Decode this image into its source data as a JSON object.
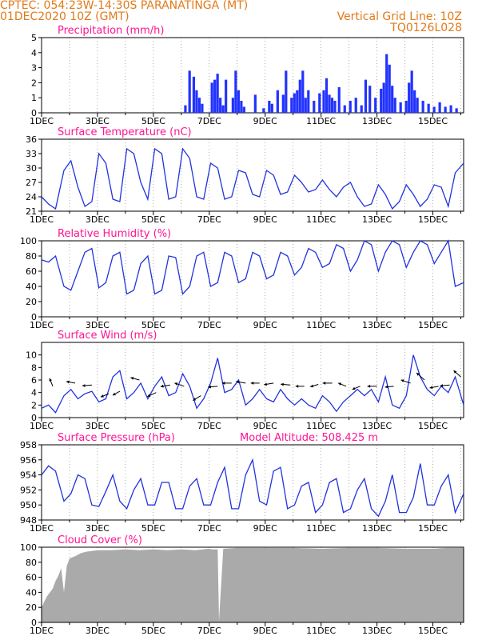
{
  "header": {
    "line1": "CPTEC:   054:23W-14:30S   PARANATINGA (MT)",
    "line2": "01DEC2020 10Z (GMT)",
    "right1": "Vertical Grid Line: 10Z",
    "right2": "TQ0126L028"
  },
  "colors": {
    "header": "#e07a1a",
    "title": "#ff1493",
    "line": "#2233dd",
    "bar": "#2233ff",
    "cloud": "#aaaaaa"
  },
  "x_labels": [
    "1DEC",
    "3DEC",
    "5DEC",
    "7DEC",
    "9DEC",
    "11DEC",
    "13DEC",
    "15DEC"
  ],
  "chart_data": [
    {
      "type": "bar",
      "title": "Precipitation (mm/h)",
      "ylim": [
        0,
        5
      ],
      "yticks": [
        0,
        1,
        2,
        3,
        4,
        5
      ],
      "xlim": [
        0,
        15.1
      ],
      "x": [
        5.1,
        5.25,
        5.4,
        5.5,
        5.6,
        5.7,
        6.05,
        6.15,
        6.25,
        6.35,
        6.45,
        6.55,
        6.8,
        6.9,
        7.0,
        7.1,
        7.2,
        7.6,
        7.9,
        8.1,
        8.2,
        8.4,
        8.6,
        8.7,
        8.9,
        9.0,
        9.1,
        9.2,
        9.3,
        9.4,
        9.5,
        9.7,
        9.9,
        10.05,
        10.15,
        10.25,
        10.35,
        10.45,
        10.6,
        10.8,
        11.0,
        11.2,
        11.4,
        11.55,
        11.7,
        11.9,
        12.1,
        12.2,
        12.3,
        12.4,
        12.5,
        12.6,
        12.8,
        13.0,
        13.1,
        13.2,
        13.3,
        13.4,
        13.6,
        13.8,
        14.0,
        14.2,
        14.4,
        14.6,
        14.8
      ],
      "values": [
        0.5,
        2.8,
        2.4,
        1.5,
        1.0,
        0.6,
        2.0,
        2.2,
        2.6,
        1.0,
        0.5,
        2.2,
        1.0,
        2.8,
        1.5,
        0.8,
        0.4,
        1.2,
        0.3,
        0.8,
        0.6,
        1.5,
        1.2,
        2.8,
        1.0,
        1.3,
        1.5,
        2.2,
        2.8,
        1.0,
        1.5,
        0.8,
        1.3,
        1.5,
        2.3,
        1.2,
        1.0,
        0.8,
        1.7,
        0.5,
        0.8,
        1.0,
        0.5,
        2.2,
        1.8,
        1.0,
        1.6,
        2.0,
        3.9,
        3.2,
        1.8,
        1.0,
        0.7,
        0.8,
        2.0,
        2.8,
        1.5,
        1.0,
        0.8,
        0.6,
        0.4,
        0.7,
        0.4,
        0.5,
        0.3
      ]
    },
    {
      "type": "line",
      "title": "Surface Temperature (nC)",
      "ylim": [
        21,
        36
      ],
      "yticks": [
        21,
        24,
        27,
        30,
        33,
        36
      ],
      "xlim": [
        0,
        15.1
      ],
      "x": [
        0,
        0.25,
        0.5,
        0.8,
        1.05,
        1.3,
        1.55,
        1.8,
        2.05,
        2.3,
        2.55,
        2.8,
        3.05,
        3.3,
        3.55,
        3.8,
        4.05,
        4.3,
        4.55,
        4.8,
        5.05,
        5.3,
        5.55,
        5.8,
        6.05,
        6.3,
        6.55,
        6.8,
        7.05,
        7.3,
        7.55,
        7.8,
        8.05,
        8.3,
        8.55,
        8.8,
        9.05,
        9.3,
        9.55,
        9.8,
        10.05,
        10.3,
        10.55,
        10.8,
        11.05,
        11.3,
        11.55,
        11.8,
        12.05,
        12.3,
        12.55,
        12.8,
        13.05,
        13.3,
        13.55,
        13.8,
        14.05,
        14.3,
        14.55,
        14.8,
        15.1
      ],
      "values": [
        24,
        22.5,
        21.5,
        29.5,
        31.5,
        26,
        22,
        23,
        33,
        31,
        23.5,
        23,
        34,
        33,
        27,
        23.5,
        34,
        33,
        23.5,
        24,
        34,
        32,
        24,
        23.5,
        31,
        30,
        23.5,
        24,
        29.5,
        29,
        24.5,
        24,
        29.5,
        28.5,
        24.5,
        25,
        28.5,
        27,
        25,
        25.5,
        27.5,
        25.5,
        24,
        26,
        27,
        24,
        22,
        22.5,
        26.5,
        24.5,
        21.5,
        23,
        26.5,
        24.5,
        22,
        23.5,
        26.5,
        26,
        22,
        29,
        31
      ]
    },
    {
      "type": "line",
      "title": "Relative Humidity (%)",
      "ylim": [
        0,
        100
      ],
      "yticks": [
        0,
        20,
        40,
        60,
        80,
        100
      ],
      "xlim": [
        0,
        15.1
      ],
      "x": [
        0,
        0.25,
        0.5,
        0.8,
        1.05,
        1.3,
        1.55,
        1.8,
        2.05,
        2.3,
        2.55,
        2.8,
        3.05,
        3.3,
        3.55,
        3.8,
        4.05,
        4.3,
        4.55,
        4.8,
        5.05,
        5.3,
        5.55,
        5.8,
        6.05,
        6.3,
        6.55,
        6.8,
        7.05,
        7.3,
        7.55,
        7.8,
        8.05,
        8.3,
        8.55,
        8.8,
        9.05,
        9.3,
        9.55,
        9.8,
        10.05,
        10.3,
        10.55,
        10.8,
        11.05,
        11.3,
        11.55,
        11.8,
        12.05,
        12.3,
        12.55,
        12.8,
        13.05,
        13.3,
        13.55,
        13.8,
        14.05,
        14.3,
        14.55,
        14.8,
        15.1
      ],
      "values": [
        75,
        72,
        80,
        40,
        35,
        60,
        85,
        90,
        38,
        45,
        80,
        85,
        30,
        35,
        70,
        80,
        30,
        35,
        80,
        78,
        30,
        40,
        80,
        85,
        40,
        45,
        85,
        80,
        45,
        50,
        85,
        80,
        50,
        55,
        85,
        80,
        55,
        65,
        90,
        85,
        65,
        70,
        95,
        90,
        60,
        75,
        100,
        95,
        60,
        85,
        100,
        95,
        65,
        85,
        100,
        95,
        70,
        85,
        100,
        40,
        45
      ]
    },
    {
      "type": "line",
      "title": "Surface Wind (m/s)",
      "ylim": [
        0,
        12
      ],
      "yticks": [
        0,
        2,
        4,
        6,
        8,
        10
      ],
      "xlim": [
        0,
        15.1
      ],
      "x": [
        0,
        0.25,
        0.5,
        0.8,
        1.05,
        1.3,
        1.55,
        1.8,
        2.05,
        2.3,
        2.55,
        2.8,
        3.05,
        3.3,
        3.55,
        3.8,
        4.05,
        4.3,
        4.55,
        4.8,
        5.05,
        5.3,
        5.55,
        5.8,
        6.05,
        6.3,
        6.55,
        6.8,
        7.05,
        7.3,
        7.55,
        7.8,
        8.05,
        8.3,
        8.55,
        8.8,
        9.05,
        9.3,
        9.55,
        9.8,
        10.05,
        10.3,
        10.55,
        10.8,
        11.05,
        11.3,
        11.55,
        11.8,
        12.05,
        12.3,
        12.55,
        12.8,
        13.05,
        13.3,
        13.55,
        13.8,
        14.05,
        14.3,
        14.55,
        14.8,
        15.1
      ],
      "values": [
        1.5,
        2.0,
        0.8,
        3.5,
        4.5,
        3.0,
        3.8,
        4.2,
        2.5,
        3.0,
        6.5,
        7.5,
        3.0,
        4.0,
        5.5,
        3.0,
        5.0,
        6.5,
        3.5,
        4.0,
        7.0,
        5.0,
        1.5,
        3.0,
        5.5,
        9.5,
        4.0,
        4.5,
        6.0,
        2.0,
        3.0,
        4.5,
        3.0,
        2.5,
        4.5,
        3.0,
        2.0,
        3.0,
        2.0,
        1.5,
        3.5,
        2.5,
        1.0,
        2.5,
        3.5,
        4.5,
        3.5,
        4.5,
        2.5,
        6.5,
        2.0,
        1.5,
        3.5,
        10.0,
        6.5,
        4.5,
        3.5,
        5.0,
        4.0,
        6.5,
        2.0
      ],
      "arrows": [
        {
          "x": 0.4,
          "y": 5.0,
          "dx": -4,
          "dy": -10
        },
        {
          "x": 1.2,
          "y": 5.5,
          "dx": -11,
          "dy": -2
        },
        {
          "x": 1.8,
          "y": 5.2,
          "dx": -12,
          "dy": 1
        },
        {
          "x": 2.4,
          "y": 3.8,
          "dx": -10,
          "dy": 4
        },
        {
          "x": 2.8,
          "y": 4.2,
          "dx": -9,
          "dy": 5
        },
        {
          "x": 3.5,
          "y": 6.0,
          "dx": -11,
          "dy": -3
        },
        {
          "x": 4.1,
          "y": 4.0,
          "dx": -11,
          "dy": 5
        },
        {
          "x": 4.6,
          "y": 5.2,
          "dx": -12,
          "dy": 2
        },
        {
          "x": 5.1,
          "y": 5.0,
          "dx": -12,
          "dy": -4
        },
        {
          "x": 5.7,
          "y": 3.5,
          "dx": -10,
          "dy": 6
        },
        {
          "x": 6.3,
          "y": 5.0,
          "dx": -12,
          "dy": 1
        },
        {
          "x": 6.8,
          "y": 5.5,
          "dx": -12,
          "dy": 0
        },
        {
          "x": 7.3,
          "y": 5.5,
          "dx": -12,
          "dy": -2
        },
        {
          "x": 7.8,
          "y": 5.5,
          "dx": -11,
          "dy": 0
        },
        {
          "x": 8.3,
          "y": 5.5,
          "dx": -12,
          "dy": 2
        },
        {
          "x": 8.9,
          "y": 5.2,
          "dx": -12,
          "dy": -1
        },
        {
          "x": 9.4,
          "y": 5.0,
          "dx": -11,
          "dy": 0
        },
        {
          "x": 9.9,
          "y": 5.3,
          "dx": -10,
          "dy": 3
        },
        {
          "x": 10.4,
          "y": 5.5,
          "dx": -12,
          "dy": 0
        },
        {
          "x": 10.9,
          "y": 5.0,
          "dx": -10,
          "dy": -4
        },
        {
          "x": 11.4,
          "y": 5.0,
          "dx": -10,
          "dy": 4
        },
        {
          "x": 12.0,
          "y": 5.0,
          "dx": -12,
          "dy": 0
        },
        {
          "x": 12.6,
          "y": 5.0,
          "dx": -11,
          "dy": 1
        },
        {
          "x": 13.2,
          "y": 5.5,
          "dx": -12,
          "dy": -4
        },
        {
          "x": 13.7,
          "y": 6.0,
          "dx": -10,
          "dy": -9
        },
        {
          "x": 14.2,
          "y": 5.0,
          "dx": -11,
          "dy": 2
        },
        {
          "x": 14.6,
          "y": 5.2,
          "dx": -12,
          "dy": 1
        },
        {
          "x": 15.0,
          "y": 6.5,
          "dx": -9,
          "dy": -8
        }
      ]
    },
    {
      "type": "line",
      "title": "Surface Pressure (hPa)",
      "subtitle": "Model Altitude: 508.425 m",
      "ylim": [
        948,
        958
      ],
      "yticks": [
        948,
        950,
        952,
        954,
        956,
        958
      ],
      "xlim": [
        0,
        15.1
      ],
      "x": [
        0,
        0.25,
        0.5,
        0.8,
        1.05,
        1.3,
        1.55,
        1.8,
        2.05,
        2.3,
        2.55,
        2.8,
        3.05,
        3.3,
        3.55,
        3.8,
        4.05,
        4.3,
        4.55,
        4.8,
        5.05,
        5.3,
        5.55,
        5.8,
        6.05,
        6.3,
        6.55,
        6.8,
        7.05,
        7.3,
        7.55,
        7.8,
        8.05,
        8.3,
        8.55,
        8.8,
        9.05,
        9.3,
        9.55,
        9.8,
        10.05,
        10.3,
        10.55,
        10.8,
        11.05,
        11.3,
        11.55,
        11.8,
        12.05,
        12.3,
        12.55,
        12.8,
        13.05,
        13.3,
        13.55,
        13.8,
        14.05,
        14.3,
        14.55,
        14.8,
        15.1
      ],
      "values": [
        954,
        955.2,
        954.5,
        950.5,
        951.5,
        954,
        953.5,
        950,
        949.8,
        951.8,
        954,
        950.5,
        949.5,
        952,
        953.5,
        950,
        950,
        953,
        953,
        949.5,
        949.5,
        952.5,
        953.5,
        950,
        950,
        953,
        955,
        949.5,
        949.5,
        954,
        956,
        950.5,
        950,
        954.5,
        955,
        949.5,
        950,
        952.5,
        953,
        949,
        950,
        953,
        953.5,
        949,
        949.5,
        952,
        953.5,
        949.5,
        948.5,
        950.5,
        954,
        949,
        949,
        951,
        955.5,
        950,
        950,
        952.5,
        954,
        949,
        951.5
      ]
    },
    {
      "type": "area",
      "title": "Cloud Cover (%)",
      "ylim": [
        0,
        100
      ],
      "yticks": [
        0,
        20,
        40,
        60,
        80,
        100
      ],
      "xlim": [
        0,
        15.1
      ],
      "x": [
        0,
        0.1,
        0.2,
        0.3,
        0.4,
        0.5,
        0.6,
        0.7,
        0.8,
        0.9,
        1.0,
        1.2,
        1.4,
        1.6,
        1.8,
        2.0,
        2.5,
        3.0,
        3.5,
        4.0,
        4.5,
        5.0,
        5.5,
        6.0,
        6.1,
        6.3,
        6.35,
        6.5,
        7.0,
        8.0,
        9.0,
        10.0,
        11.0,
        12.0,
        13.0,
        14.0,
        14.5,
        15.1
      ],
      "values": [
        20,
        28,
        35,
        40,
        45,
        55,
        62,
        72,
        40,
        75,
        85,
        88,
        92,
        94,
        95,
        96,
        96,
        97,
        96,
        97,
        96,
        97,
        96,
        98,
        97,
        97,
        2,
        98,
        99,
        99,
        99,
        98,
        99,
        99,
        98,
        98,
        99,
        99
      ]
    }
  ]
}
